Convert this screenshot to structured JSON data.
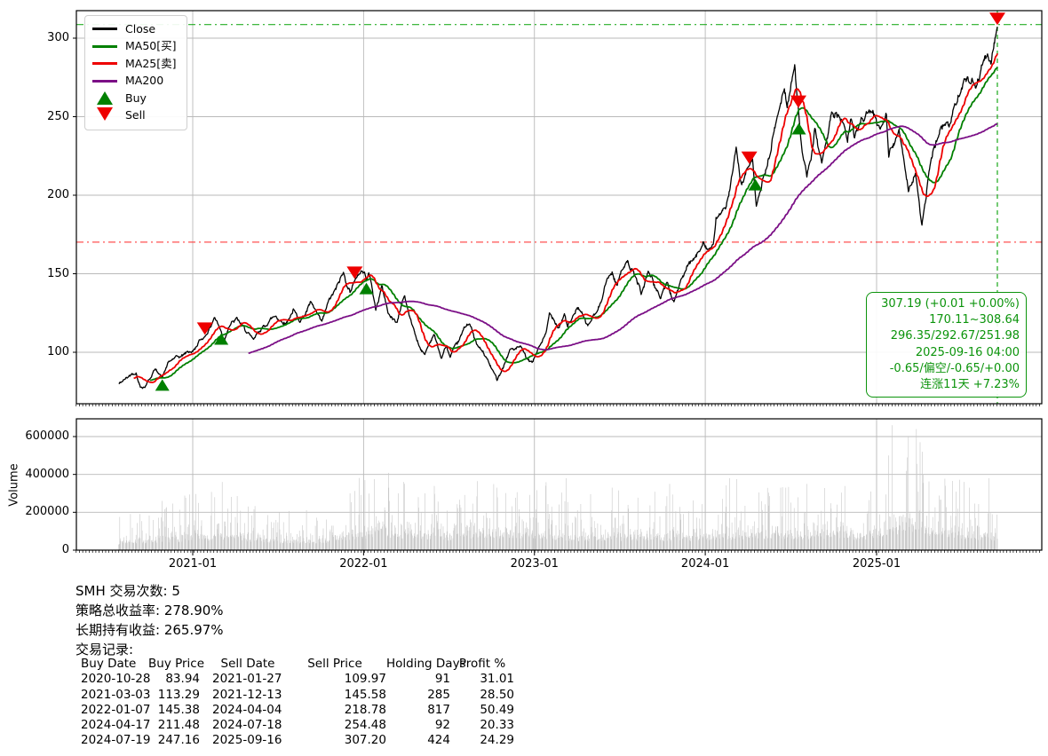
{
  "chart_data": [
    {
      "type": "line",
      "title": "",
      "xlabel": "",
      "ylabel": "",
      "x_domain": [
        "2020-04-27",
        "2025-12-18"
      ],
      "ylim": [
        67,
        318
      ],
      "yticks": [
        100,
        150,
        200,
        250,
        300
      ],
      "xticks": [
        "2021-01",
        "2022-01",
        "2023-01",
        "2024-01",
        "2025-01"
      ],
      "grid": true,
      "legend_position": "upper left",
      "legend": {
        "items": [
          "Close",
          "MA50[买]",
          "MA25[卖]",
          "MA200",
          "Buy",
          "Sell"
        ]
      },
      "colors": {
        "close": "#000000",
        "ma50": "#008000",
        "ma25": "#ee0000",
        "ma200": "#7b0f86",
        "buy": "#008000",
        "sell": "#ee0000",
        "grid": "#b9b9b9",
        "frame": "#000000",
        "hline_low": "#ff3333",
        "hline_high": "#00a000",
        "vline": "#00a000"
      },
      "series": {
        "start_date": "2020-07-27",
        "end_date": "2025-09-16",
        "name": "Close",
        "ma_windows": {
          "MA25": 25,
          "MA50": 50,
          "MA200": 200
        },
        "close_keypoints": [
          [
            "2020-07-27",
            79.0
          ],
          [
            "2020-08-10",
            83.5
          ],
          [
            "2020-09-02",
            87.5
          ],
          [
            "2020-09-11",
            78.5
          ],
          [
            "2020-09-21",
            77.5
          ],
          [
            "2020-10-12",
            89.0
          ],
          [
            "2020-10-28",
            83.94
          ],
          [
            "2020-11-09",
            94.0
          ],
          [
            "2020-12-01",
            97.5
          ],
          [
            "2020-12-31",
            100.0
          ],
          [
            "2021-01-14",
            106.5
          ],
          [
            "2021-01-27",
            109.97
          ],
          [
            "2021-02-16",
            122.0
          ],
          [
            "2021-03-03",
            113.29
          ],
          [
            "2021-03-08",
            106.0
          ],
          [
            "2021-03-18",
            115.0
          ],
          [
            "2021-04-06",
            122.5
          ],
          [
            "2021-04-20",
            115.5
          ],
          [
            "2021-05-12",
            108.0
          ],
          [
            "2021-06-01",
            116.0
          ],
          [
            "2021-06-28",
            124.0
          ],
          [
            "2021-07-19",
            117.5
          ],
          [
            "2021-08-04",
            127.0
          ],
          [
            "2021-08-19",
            118.5
          ],
          [
            "2021-09-09",
            132.0
          ],
          [
            "2021-10-04",
            120.0
          ],
          [
            "2021-10-21",
            133.0
          ],
          [
            "2021-11-19",
            150.0
          ],
          [
            "2021-12-03",
            140.0
          ],
          [
            "2021-12-13",
            145.58
          ],
          [
            "2021-12-27",
            152.0
          ],
          [
            "2022-01-03",
            151.0
          ],
          [
            "2022-01-07",
            145.38
          ],
          [
            "2022-01-12",
            150.5
          ],
          [
            "2022-01-27",
            128.0
          ],
          [
            "2022-02-09",
            142.0
          ],
          [
            "2022-02-23",
            125.5
          ],
          [
            "2022-03-14",
            118.0
          ],
          [
            "2022-03-29",
            137.0
          ],
          [
            "2022-04-11",
            120.0
          ],
          [
            "2022-04-29",
            106.0
          ],
          [
            "2022-05-11",
            98.0
          ],
          [
            "2022-05-31",
            112.0
          ],
          [
            "2022-06-16",
            95.0
          ],
          [
            "2022-06-27",
            105.0
          ],
          [
            "2022-07-05",
            97.0
          ],
          [
            "2022-08-04",
            115.5
          ],
          [
            "2022-08-15",
            118.0
          ],
          [
            "2022-09-01",
            104.0
          ],
          [
            "2022-09-23",
            96.0
          ],
          [
            "2022-10-13",
            82.5
          ],
          [
            "2022-10-25",
            90.0
          ],
          [
            "2022-11-11",
            101.0
          ],
          [
            "2022-12-01",
            104.0
          ],
          [
            "2022-12-16",
            96.0
          ],
          [
            "2022-12-28",
            94.0
          ],
          [
            "2023-01-26",
            112.0
          ],
          [
            "2023-02-02",
            124.0
          ],
          [
            "2023-02-22",
            117.0
          ],
          [
            "2023-03-06",
            124.5
          ],
          [
            "2023-03-13",
            116.5
          ],
          [
            "2023-04-03",
            128.0
          ],
          [
            "2023-04-25",
            117.5
          ],
          [
            "2023-05-15",
            126.0
          ],
          [
            "2023-05-31",
            142.0
          ],
          [
            "2023-06-16",
            150.5
          ],
          [
            "2023-06-26",
            142.5
          ],
          [
            "2023-07-18",
            160.0
          ],
          [
            "2023-08-18",
            138.0
          ],
          [
            "2023-09-01",
            150.5
          ],
          [
            "2023-09-27",
            135.0
          ],
          [
            "2023-10-12",
            145.0
          ],
          [
            "2023-10-26",
            132.5
          ],
          [
            "2023-11-21",
            153.0
          ],
          [
            "2023-12-07",
            158.0
          ],
          [
            "2023-12-28",
            172.0
          ],
          [
            "2024-01-05",
            165.0
          ],
          [
            "2024-01-18",
            168.5
          ],
          [
            "2024-01-24",
            184.0
          ],
          [
            "2024-02-13",
            190.0
          ],
          [
            "2024-02-22",
            205.0
          ],
          [
            "2024-03-07",
            229.0
          ],
          [
            "2024-03-19",
            208.0
          ],
          [
            "2024-04-04",
            218.78
          ],
          [
            "2024-04-11",
            222.0
          ],
          [
            "2024-04-19",
            193.0
          ],
          [
            "2024-05-01",
            205.0
          ],
          [
            "2024-05-28",
            242.0
          ],
          [
            "2024-06-18",
            270.0
          ],
          [
            "2024-06-24",
            255.0
          ],
          [
            "2024-07-10",
            281.0
          ],
          [
            "2024-07-18",
            254.48
          ],
          [
            "2024-07-25",
            230.0
          ],
          [
            "2024-08-05",
            211.0
          ],
          [
            "2024-08-22",
            241.0
          ],
          [
            "2024-09-06",
            218.0
          ],
          [
            "2024-09-26",
            250.0
          ],
          [
            "2024-10-15",
            252.0
          ],
          [
            "2024-10-31",
            235.0
          ],
          [
            "2024-11-07",
            250.0
          ],
          [
            "2024-11-15",
            238.0
          ],
          [
            "2024-12-16",
            255.0
          ],
          [
            "2025-01-06",
            245.0
          ],
          [
            "2025-01-22",
            252.0
          ],
          [
            "2025-01-27",
            225.0
          ],
          [
            "2025-02-18",
            240.0
          ],
          [
            "2025-03-10",
            205.0
          ],
          [
            "2025-03-25",
            214.0
          ],
          [
            "2025-04-08",
            181.0
          ],
          [
            "2025-04-24",
            215.0
          ],
          [
            "2025-05-13",
            240.0
          ],
          [
            "2025-06-03",
            246.0
          ],
          [
            "2025-06-20",
            260.0
          ],
          [
            "2025-07-10",
            275.0
          ],
          [
            "2025-07-31",
            269.0
          ],
          [
            "2025-08-19",
            288.0
          ],
          [
            "2025-09-02",
            286.5
          ],
          [
            "2025-09-16",
            307.19
          ]
        ]
      },
      "markers": {
        "buys": [
          [
            "2020-10-28",
            83.94
          ],
          [
            "2021-03-03",
            113.29
          ],
          [
            "2022-01-07",
            145.38
          ],
          [
            "2024-04-17",
            211.48
          ],
          [
            "2024-07-19",
            247.16
          ]
        ],
        "sells": [
          [
            "2021-01-27",
            109.97
          ],
          [
            "2021-12-13",
            145.58
          ],
          [
            "2024-04-04",
            218.78
          ],
          [
            "2024-07-18",
            254.48
          ],
          [
            "2025-09-16",
            307.2
          ]
        ]
      },
      "hlines": [
        {
          "y": 170.11,
          "color": "#ff3333",
          "style": "dashdot"
        },
        {
          "y": 308.64,
          "color": "#00a000",
          "style": "dashdot"
        }
      ],
      "vlines": [
        {
          "x": "2025-09-16",
          "color": "#00a000",
          "style": "dashed"
        }
      ],
      "info_box": {
        "color": "#0c940c",
        "lines": [
          "307.19 (+0.01 +0.00%)",
          "170.11~308.64",
          "296.35/292.67/251.98",
          "2025-09-16 04:00",
          "-0.65/偏空/-0.65/+0.00",
          "连涨11天 +7.23%"
        ]
      }
    },
    {
      "type": "bar",
      "ylabel": "Volume",
      "yticks": [
        0,
        200000,
        400000,
        600000
      ],
      "ytick_labels": [
        "0",
        "200000",
        "400000",
        "600000"
      ],
      "ylim": [
        0,
        700000
      ],
      "bar_color": "#c9c9c9",
      "volume_profile": [
        [
          "2020-07-27",
          70000
        ],
        [
          "2020-11-02",
          95000
        ],
        [
          "2021-01-04",
          110000
        ],
        [
          "2021-03-01",
          125000
        ],
        [
          "2021-06-01",
          85000
        ],
        [
          "2021-09-01",
          80000
        ],
        [
          "2021-11-01",
          90000
        ],
        [
          "2022-01-03",
          145000
        ],
        [
          "2022-03-01",
          150000
        ],
        [
          "2022-05-02",
          140000
        ],
        [
          "2022-07-01",
          120000
        ],
        [
          "2022-10-03",
          145000
        ],
        [
          "2023-01-03",
          135000
        ],
        [
          "2023-04-03",
          110000
        ],
        [
          "2023-06-01",
          115000
        ],
        [
          "2023-09-01",
          115000
        ],
        [
          "2023-12-01",
          105000
        ],
        [
          "2024-02-01",
          120000
        ],
        [
          "2024-04-01",
          130000
        ],
        [
          "2024-07-01",
          130000
        ],
        [
          "2024-09-02",
          140000
        ],
        [
          "2024-12-02",
          125000
        ],
        [
          "2025-01-27",
          170000
        ],
        [
          "2025-03-03",
          210000
        ],
        [
          "2025-04-07",
          215000
        ],
        [
          "2025-05-01",
          160000
        ],
        [
          "2025-07-01",
          135000
        ],
        [
          "2025-09-16",
          120000
        ]
      ],
      "volume_spikes": [
        [
          "2020-10-28",
          260000
        ],
        [
          "2021-02-17",
          280000
        ],
        [
          "2021-03-05",
          360000
        ],
        [
          "2021-12-03",
          300000
        ],
        [
          "2022-01-04",
          370000
        ],
        [
          "2022-01-24",
          375000
        ],
        [
          "2022-02-24",
          330000
        ],
        [
          "2022-05-12",
          300000
        ],
        [
          "2022-10-13",
          330000
        ],
        [
          "2023-01-25",
          340000
        ],
        [
          "2023-03-10",
          380000
        ],
        [
          "2023-06-16",
          330000
        ],
        [
          "2023-10-17",
          350000
        ],
        [
          "2024-02-22",
          380000
        ],
        [
          "2024-03-08",
          375000
        ],
        [
          "2024-06-21",
          330000
        ],
        [
          "2024-08-05",
          350000
        ],
        [
          "2024-12-20",
          310000
        ],
        [
          "2025-01-27",
          500000
        ],
        [
          "2025-02-03",
          660000
        ],
        [
          "2025-03-07",
          490000
        ],
        [
          "2025-03-10",
          600000
        ],
        [
          "2025-03-27",
          640000
        ],
        [
          "2025-04-04",
          570000
        ],
        [
          "2025-04-09",
          520000
        ],
        [
          "2025-05-28",
          340000
        ],
        [
          "2025-07-18",
          330000
        ],
        [
          "2025-08-29",
          380000
        ]
      ]
    }
  ],
  "summary": {
    "lines": [
      "SMH 交易次数: 5",
      "策略总收益率: 278.90%",
      "长期持有收益: 265.97%",
      "交易记录:"
    ]
  },
  "trades": {
    "columns": [
      "Buy Date",
      "Buy Price",
      "Sell Date",
      "Sell Price",
      "Holding Days",
      "Profit %"
    ],
    "rows": [
      [
        "2020-10-28",
        "83.94",
        "2021-01-27",
        "109.97",
        "91",
        "31.01"
      ],
      [
        "2021-03-03",
        "113.29",
        "2021-12-13",
        "145.58",
        "285",
        "28.50"
      ],
      [
        "2022-01-07",
        "145.38",
        "2024-04-04",
        "218.78",
        "817",
        "50.49"
      ],
      [
        "2024-04-17",
        "211.48",
        "2024-07-18",
        "254.48",
        "92",
        "20.33"
      ],
      [
        "2024-07-19",
        "247.16",
        "2025-09-16",
        "307.20",
        "424",
        "24.29"
      ]
    ]
  }
}
